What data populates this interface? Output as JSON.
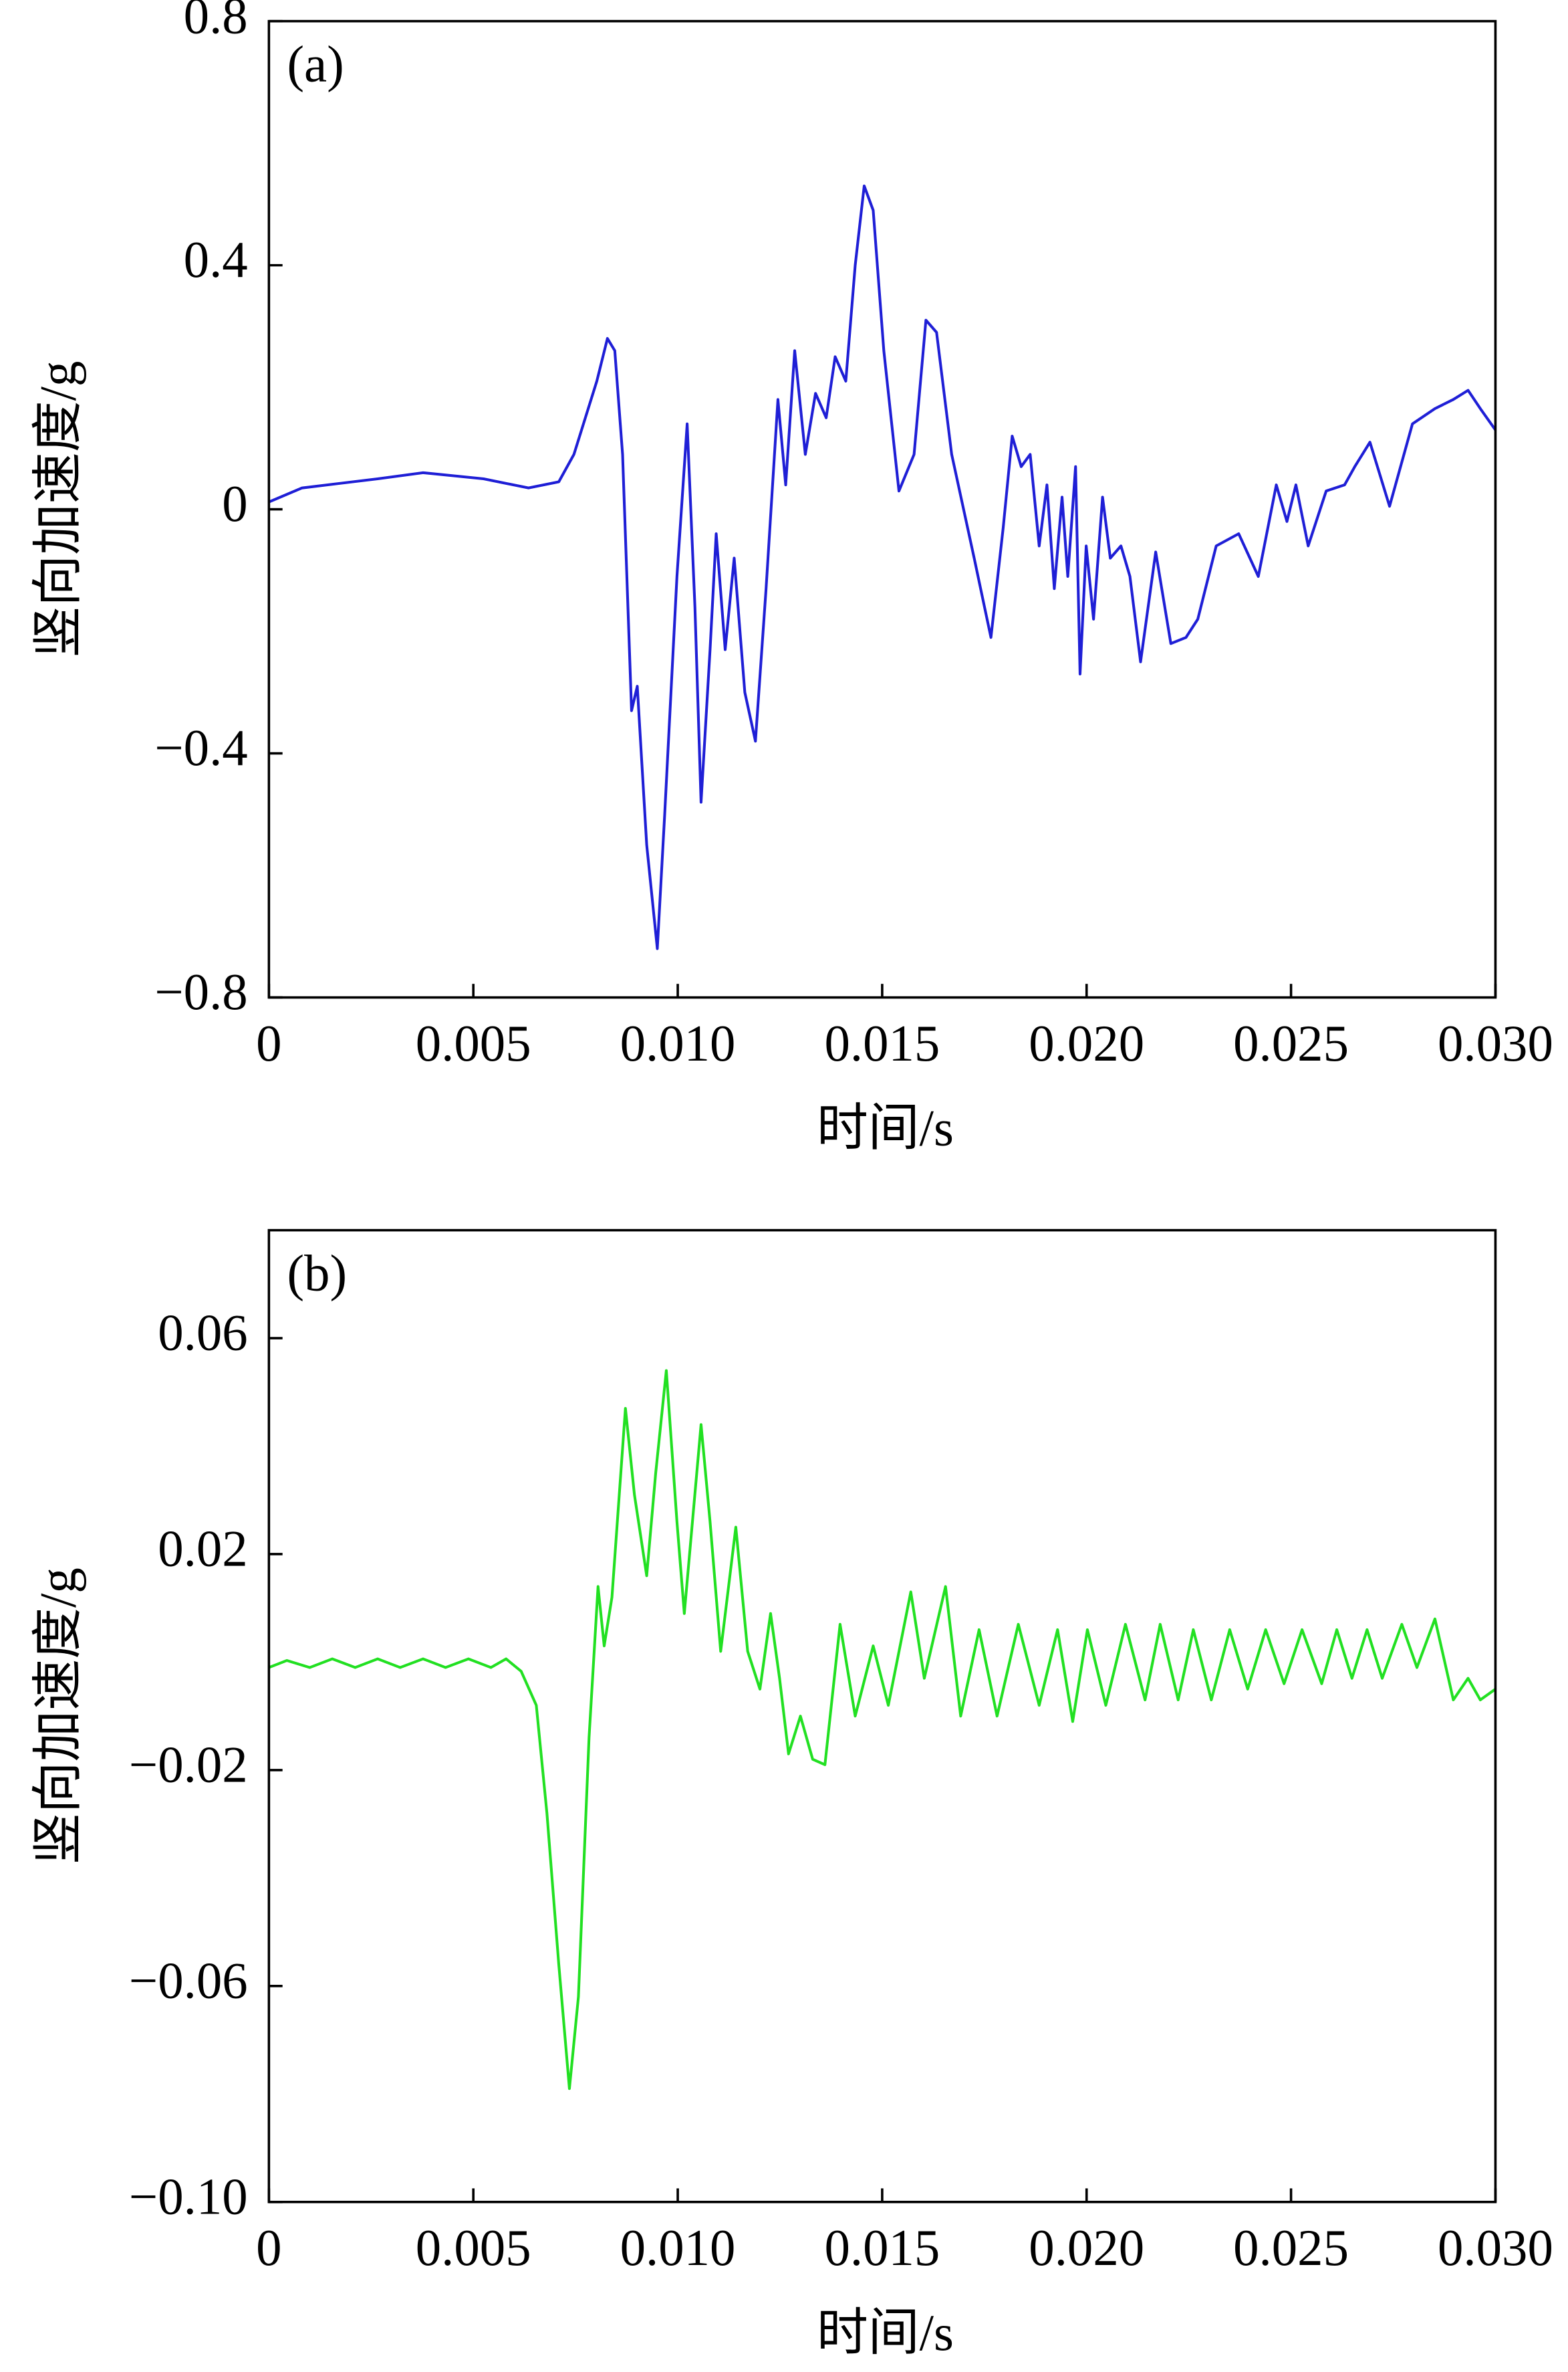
{
  "chart_data": [
    {
      "type": "line",
      "label": "(a)",
      "xlabel": "时间/s",
      "ylabel": "竖向加速度/g",
      "color": "#1f1fd6",
      "xlim": [
        0,
        0.03
      ],
      "ylim": [
        -0.8,
        0.8
      ],
      "xticks": [
        0,
        0.005,
        {
          "value": 0.01,
          "label": "0.010"
        },
        0.015,
        {
          "value": 0.02,
          "label": "0.020"
        },
        0.025,
        {
          "value": 0.03,
          "label": "0.030"
        }
      ],
      "yticks": [
        0.8,
        0.4,
        0,
        {
          "value": -0.4,
          "label": "−0.4"
        },
        {
          "value": -0.8,
          "label": "−0.8"
        }
      ],
      "x": [
        0,
        0.00081,
        0.00266,
        0.00377,
        0.00525,
        0.00635,
        0.00709,
        0.00746,
        0.00802,
        0.00828,
        0.00846,
        0.00865,
        0.00887,
        0.00901,
        0.00924,
        0.0095,
        0.00968,
        0.00998,
        0.01023,
        0.01042,
        0.01057,
        0.01079,
        0.01094,
        0.01116,
        0.01138,
        0.01164,
        0.0119,
        0.01216,
        0.01245,
        0.01264,
        0.01286,
        0.01312,
        0.01337,
        0.01363,
        0.01385,
        0.01411,
        0.01434,
        0.01456,
        0.01478,
        0.01504,
        0.01541,
        0.01578,
        0.01607,
        0.01633,
        0.0167,
        0.01725,
        0.01766,
        0.01796,
        0.01818,
        0.0184,
        0.01862,
        0.01884,
        0.01903,
        0.01921,
        0.0194,
        0.01954,
        0.01973,
        0.01984,
        0.01999,
        0.02017,
        0.02039,
        0.02058,
        0.02084,
        0.02106,
        0.02132,
        0.02169,
        0.02206,
        0.02243,
        0.02272,
        0.02317,
        0.02372,
        0.0242,
        0.02464,
        0.0249,
        0.02512,
        0.02542,
        0.02586,
        0.02631,
        0.02656,
        0.02693,
        0.02741,
        0.02797,
        0.02852,
        0.02897,
        0.02933,
        0.02963,
        0.03
      ],
      "values": [
        0.012,
        0.035,
        0.05,
        0.06,
        0.05,
        0.035,
        0.045,
        0.09,
        0.21,
        0.28,
        0.26,
        0.09,
        -0.33,
        -0.29,
        -0.55,
        -0.72,
        -0.5,
        -0.11,
        0.14,
        -0.16,
        -0.48,
        -0.23,
        -0.04,
        -0.23,
        -0.08,
        -0.3,
        -0.38,
        -0.13,
        0.18,
        0.04,
        0.26,
        0.09,
        0.19,
        0.15,
        0.25,
        0.21,
        0.4,
        0.53,
        0.49,
        0.26,
        0.03,
        0.09,
        0.31,
        0.29,
        0.09,
        -0.08,
        -0.21,
        -0.03,
        0.12,
        0.07,
        0.09,
        -0.06,
        0.04,
        -0.13,
        0.02,
        -0.11,
        0.07,
        -0.27,
        -0.06,
        -0.18,
        0.02,
        -0.08,
        -0.06,
        -0.11,
        -0.25,
        -0.07,
        -0.22,
        -0.21,
        -0.18,
        -0.06,
        -0.04,
        -0.11,
        0.04,
        -0.02,
        0.04,
        -0.06,
        0.03,
        0.04,
        0.07,
        0.11,
        0.005,
        0.14,
        0.165,
        0.18,
        0.195,
        0.165,
        0.13
      ]
    },
    {
      "type": "line",
      "label": "(b)",
      "xlabel": "时间/s",
      "ylabel": "竖向加速度/g",
      "color": "#22e022",
      "xlim": [
        0,
        0.03
      ],
      "ylim": [
        -0.1,
        0.08
      ],
      "xticks": [
        0,
        0.005,
        {
          "value": 0.01,
          "label": "0.010"
        },
        0.015,
        {
          "value": 0.02,
          "label": "0.020"
        },
        0.025,
        {
          "value": 0.03,
          "label": "0.030"
        }
      ],
      "yticks": [
        0.06,
        0.02,
        {
          "value": -0.02,
          "label": "−0.02"
        },
        {
          "value": -0.06,
          "label": "−0.06"
        },
        {
          "value": -0.1,
          "label": "−0.10"
        }
      ],
      "x": [
        0,
        0.00044,
        0.001,
        0.00155,
        0.00211,
        0.00266,
        0.00321,
        0.00377,
        0.00432,
        0.00488,
        0.00543,
        0.0058,
        0.00617,
        0.00654,
        0.0068,
        0.00709,
        0.00735,
        0.00757,
        0.00783,
        0.00805,
        0.0082,
        0.00839,
        0.00872,
        0.00894,
        0.00924,
        0.00946,
        0.00972,
        0.00998,
        0.01016,
        0.01057,
        0.01079,
        0.01105,
        0.01142,
        0.01171,
        0.01201,
        0.01227,
        0.01249,
        0.01271,
        0.013,
        0.0133,
        0.0136,
        0.01397,
        0.01434,
        0.01478,
        0.01515,
        0.0157,
        0.01603,
        0.01655,
        0.01692,
        0.01737,
        0.01781,
        0.01833,
        0.01884,
        0.01929,
        0.01966,
        0.02002,
        0.02047,
        0.02095,
        0.02143,
        0.0218,
        0.02224,
        0.02261,
        0.02305,
        0.0235,
        0.02394,
        0.02438,
        0.02483,
        0.02527,
        0.02575,
        0.02612,
        0.02649,
        0.02686,
        0.02723,
        0.02771,
        0.02808,
        0.02852,
        0.02897,
        0.02933,
        0.02963,
        0.03
      ],
      "values": [
        -0.001,
        0.0003,
        -0.001,
        0.0006,
        -0.001,
        0.0006,
        -0.001,
        0.0006,
        -0.001,
        0.0006,
        -0.001,
        0.0006,
        -0.0017,
        -0.008,
        -0.028,
        -0.056,
        -0.079,
        -0.062,
        -0.014,
        0.014,
        0.003,
        0.012,
        0.047,
        0.031,
        0.016,
        0.035,
        0.054,
        0.026,
        0.009,
        0.044,
        0.026,
        0.002,
        0.025,
        0.002,
        -0.005,
        0.009,
        -0.003,
        -0.017,
        -0.01,
        -0.018,
        -0.019,
        0.007,
        -0.01,
        0.003,
        -0.008,
        0.013,
        -0.003,
        0.014,
        -0.01,
        0.006,
        -0.01,
        0.007,
        -0.008,
        0.006,
        -0.011,
        0.006,
        -0.008,
        0.007,
        -0.007,
        0.007,
        -0.007,
        0.006,
        -0.007,
        0.006,
        -0.005,
        0.006,
        -0.004,
        0.006,
        -0.004,
        0.006,
        -0.003,
        0.006,
        -0.003,
        0.007,
        -0.001,
        0.008,
        -0.007,
        -0.003,
        -0.007,
        -0.005
      ]
    }
  ]
}
